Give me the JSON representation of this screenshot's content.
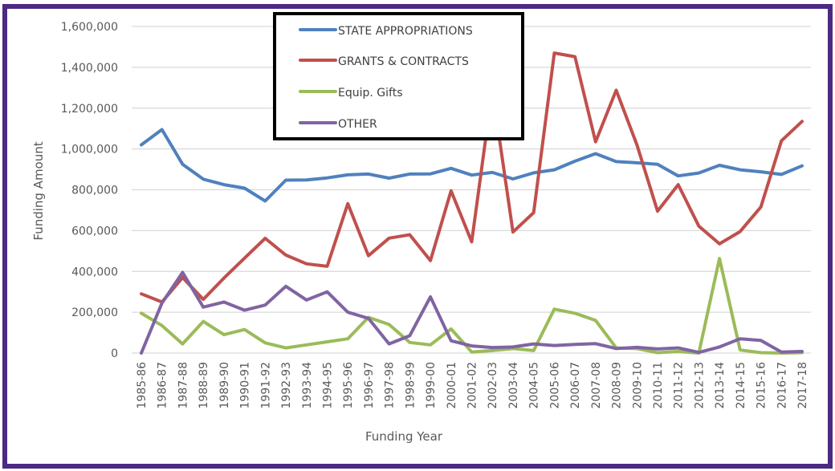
{
  "chart_data": {
    "type": "line",
    "title": "",
    "xlabel": "Funding Year",
    "ylabel": "Funding Amount",
    "ylim": [
      0,
      1600000
    ],
    "yticks": [
      0,
      200000,
      400000,
      600000,
      800000,
      1000000,
      1200000,
      1400000,
      1600000
    ],
    "ytick_labels": [
      "0",
      "200,000",
      "400,000",
      "600,000",
      "800,000",
      "1,000,000",
      "1,200,000",
      "1,400,000",
      "1,600,000"
    ],
    "grid": true,
    "legend_position": "top-center",
    "categories": [
      "1985-86",
      "1986-87",
      "1987-88",
      "1988-89",
      "1989-90",
      "1990-91",
      "1991-92",
      "1992-93",
      "1993-94",
      "1994-95",
      "1995-96",
      "1996-97",
      "1997-98",
      "1998-99",
      "1999-00",
      "2000-01",
      "2001-02",
      "2002-03",
      "2003-04",
      "2004-05",
      "2005-06",
      "2006-07",
      "2007-08",
      "2008-09",
      "2009-10",
      "2010-11",
      "2011-12",
      "2012-13",
      "2013-14",
      "2014-15",
      "2015-16",
      "2016-17",
      "2017-18"
    ],
    "series": [
      {
        "name": "STATE APPROPRIATIONS",
        "color": "#4f81bd",
        "values": [
          1020000,
          1095000,
          925000,
          852000,
          825000,
          808000,
          745000,
          847000,
          848000,
          858000,
          873000,
          877000,
          857000,
          877000,
          878000,
          905000,
          872000,
          885000,
          853000,
          883000,
          898000,
          940000,
          977000,
          938000,
          932000,
          925000,
          868000,
          882000,
          920000,
          898000,
          888000,
          875000,
          917000
        ]
      },
      {
        "name": "GRANTS & CONTRACTS",
        "color": "#c0504d",
        "values": [
          290000,
          250000,
          370000,
          263000,
          367000,
          465000,
          562000,
          480000,
          437000,
          425000,
          732000,
          477000,
          563000,
          580000,
          453000,
          795000,
          545000,
          1290000,
          593000,
          688000,
          1470000,
          1452000,
          1035000,
          1288000,
          1020000,
          695000,
          825000,
          622000,
          535000,
          595000,
          715000,
          1040000,
          1135000
        ]
      },
      {
        "name": "Equip. Gifts",
        "color": "#9bbb59",
        "values": [
          195000,
          135000,
          45000,
          155000,
          90000,
          115000,
          50000,
          25000,
          40000,
          55000,
          70000,
          175000,
          140000,
          52000,
          40000,
          118000,
          5000,
          12000,
          22000,
          12000,
          215000,
          195000,
          160000,
          25000,
          22000,
          2000,
          8000,
          0,
          463000,
          15000,
          2000,
          0,
          2000
        ]
      },
      {
        "name": "OTHER",
        "color": "#8064a2",
        "values": [
          0,
          245000,
          395000,
          225000,
          250000,
          210000,
          235000,
          327000,
          260000,
          300000,
          200000,
          170000,
          45000,
          85000,
          275000,
          60000,
          35000,
          27000,
          30000,
          45000,
          37000,
          42000,
          46000,
          22000,
          28000,
          20000,
          25000,
          3000,
          30000,
          70000,
          62000,
          5000,
          8000
        ]
      }
    ]
  }
}
